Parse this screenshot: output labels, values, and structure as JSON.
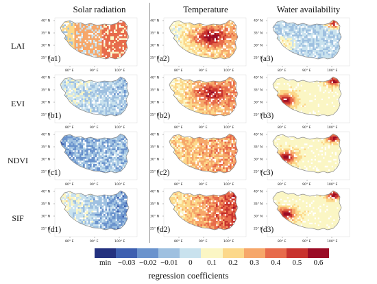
{
  "columns": [
    {
      "title": "Solar radiation",
      "key": "solar"
    },
    {
      "title": "Temperature",
      "key": "temp"
    },
    {
      "title": "Water availability",
      "key": "water"
    }
  ],
  "rows": [
    {
      "label": "LAI",
      "panels": [
        "(a1)",
        "(a2)",
        "(a3)"
      ]
    },
    {
      "label": "EVI",
      "panels": [
        "(b1)",
        "(b2)",
        "(b3)"
      ]
    },
    {
      "label": "NDVI",
      "panels": [
        "(c1)",
        "(c2)",
        "(c3)"
      ]
    },
    {
      "label": "SIF",
      "panels": [
        "(d1)",
        "(d2)",
        "(d3)"
      ]
    }
  ],
  "axes": {
    "lat_labels": [
      "40° N",
      "35° N",
      "30° N",
      "25° N"
    ],
    "lon_labels": [
      "80° E",
      "90° E",
      "100° E"
    ]
  },
  "colorbar": {
    "title": "regression coefficients",
    "tick_labels": [
      "min",
      "−0.03",
      "−0.02",
      "−0.01",
      "0",
      "0.1",
      "0.2",
      "0.3",
      "0.4",
      "0.5",
      "0.6"
    ],
    "colors": [
      "#23317f",
      "#3d5fb0",
      "#6a93cd",
      "#9ec0e0",
      "#c9e2ee",
      "#fbf6c4",
      "#fcd88a",
      "#f6a76a",
      "#e76b4b",
      "#c8332e",
      "#9b0c25"
    ]
  }
}
